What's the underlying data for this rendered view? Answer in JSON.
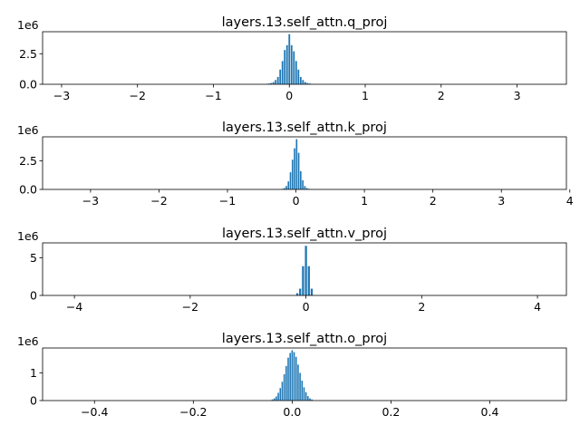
{
  "chart_data": [
    {
      "type": "bar",
      "title": "layers.13.self_attn.q_proj",
      "offset_label": "1e6",
      "xlim": [
        -3.25,
        3.65
      ],
      "ylim": [
        0,
        4.3
      ],
      "xticks": [
        -3,
        -2,
        -1,
        0,
        1,
        2,
        3
      ],
      "xtick_labels": [
        "−3",
        "−2",
        "−1",
        "0",
        "1",
        "2",
        "3"
      ],
      "yticks": [
        0,
        2.5
      ],
      "ytick_labels": [
        "0.0",
        "2.5"
      ],
      "bar_color": "#1f77b4",
      "x": [
        -0.3,
        -0.27,
        -0.24,
        -0.21,
        -0.18,
        -0.15,
        -0.12,
        -0.09,
        -0.06,
        -0.03,
        0.0,
        0.03,
        0.06,
        0.09,
        0.12,
        0.15,
        0.18,
        0.21,
        0.24,
        0.27,
        0.3
      ],
      "values": [
        0.03,
        0.06,
        0.1,
        0.18,
        0.35,
        0.6,
        1.2,
        1.9,
        2.8,
        3.2,
        4.1,
        3.2,
        2.7,
        1.9,
        1.2,
        0.6,
        0.35,
        0.18,
        0.1,
        0.06,
        0.03
      ]
    },
    {
      "type": "bar",
      "title": "layers.13.self_attn.k_proj",
      "offset_label": "1e6",
      "xlim": [
        -3.7,
        3.95
      ],
      "ylim": [
        0,
        4.6
      ],
      "xticks": [
        -3,
        -2,
        -1,
        0,
        1,
        2,
        3,
        4
      ],
      "xtick_labels": [
        "−3",
        "−2",
        "−1",
        "0",
        "1",
        "2",
        "3",
        "4"
      ],
      "yticks": [
        0,
        2.5
      ],
      "ytick_labels": [
        "0.0",
        "2.5"
      ],
      "bar_color": "#1f77b4",
      "x": [
        -0.2,
        -0.17,
        -0.14,
        -0.11,
        -0.08,
        -0.05,
        -0.02,
        0.01,
        0.04,
        0.07,
        0.1,
        0.13,
        0.16,
        0.19
      ],
      "values": [
        0.05,
        0.12,
        0.3,
        0.7,
        1.5,
        2.6,
        3.6,
        4.4,
        3.2,
        1.6,
        0.8,
        0.3,
        0.12,
        0.05
      ]
    },
    {
      "type": "bar",
      "title": "layers.13.self_attn.v_proj",
      "offset_label": "1e6",
      "xlim": [
        -4.55,
        4.5
      ],
      "ylim": [
        0,
        7.0
      ],
      "xticks": [
        -4,
        -2,
        0,
        2,
        4
      ],
      "xtick_labels": [
        "−4",
        "−2",
        "0",
        "2",
        "4"
      ],
      "yticks": [
        0,
        5
      ],
      "ytick_labels": [
        "0",
        "5"
      ],
      "bar_color": "#1f77b4",
      "x": [
        -0.15,
        -0.1,
        -0.05,
        0.0,
        0.05,
        0.1
      ],
      "values": [
        0.3,
        0.9,
        3.9,
        6.6,
        3.9,
        0.9
      ]
    },
    {
      "type": "bar",
      "title": "layers.13.self_attn.o_proj",
      "offset_label": "1e6",
      "xlim": [
        -0.505,
        0.555
      ],
      "ylim": [
        0,
        1.9
      ],
      "xticks": [
        -0.4,
        -0.2,
        0.0,
        0.2,
        0.4
      ],
      "xtick_labels": [
        "−0.4",
        "−0.2",
        "0.0",
        "0.2",
        "0.4"
      ],
      "yticks": [
        0,
        1
      ],
      "ytick_labels": [
        "0",
        "1"
      ],
      "bar_color": "#1f77b4",
      "x": [
        -0.04,
        -0.036,
        -0.032,
        -0.028,
        -0.024,
        -0.02,
        -0.016,
        -0.012,
        -0.008,
        -0.004,
        0.0,
        0.004,
        0.008,
        0.012,
        0.016,
        0.02,
        0.024,
        0.028,
        0.032,
        0.036,
        0.04
      ],
      "values": [
        0.04,
        0.08,
        0.15,
        0.28,
        0.45,
        0.68,
        0.95,
        1.25,
        1.55,
        1.72,
        1.82,
        1.75,
        1.58,
        1.3,
        1.0,
        0.72,
        0.48,
        0.3,
        0.16,
        0.08,
        0.04
      ]
    }
  ]
}
